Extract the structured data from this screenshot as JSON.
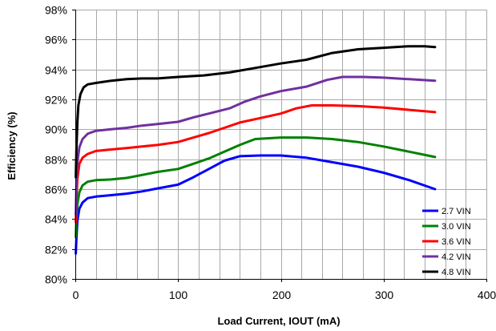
{
  "chart_data": {
    "type": "line",
    "xlabel": "Load Current, IOUT (mA)",
    "ylabel": "Efficiency (%)",
    "xlim": [
      0,
      400
    ],
    "ylim": [
      80,
      98
    ],
    "x_ticks": [
      0,
      100,
      200,
      300,
      400
    ],
    "x_tick_labels": [
      "0",
      "100",
      "200",
      "300",
      "400"
    ],
    "y_ticks": [
      80,
      82,
      84,
      86,
      88,
      90,
      92,
      94,
      96,
      98
    ],
    "y_tick_labels": [
      "80%",
      "82%",
      "84%",
      "86%",
      "88%",
      "90%",
      "92%",
      "94%",
      "96%",
      "98%"
    ],
    "x_minor_gridlines": [
      20,
      40,
      60,
      80,
      100,
      120,
      140,
      160,
      180,
      200,
      220,
      240,
      260,
      280,
      300,
      320,
      340,
      360,
      380,
      400
    ],
    "grid": true,
    "legend_position": "bottom-right",
    "series": [
      {
        "name": "2.7 VIN",
        "color": "#0000ff",
        "points": [
          [
            0.5,
            81.7
          ],
          [
            1,
            82.6
          ],
          [
            2,
            83.9
          ],
          [
            4,
            84.7
          ],
          [
            7,
            85.1
          ],
          [
            12,
            85.4
          ],
          [
            20,
            85.5
          ],
          [
            35,
            85.6
          ],
          [
            50,
            85.7
          ],
          [
            65,
            85.85
          ],
          [
            80,
            86.05
          ],
          [
            100,
            86.3
          ],
          [
            115,
            86.8
          ],
          [
            130,
            87.35
          ],
          [
            145,
            87.9
          ],
          [
            160,
            88.2
          ],
          [
            180,
            88.25
          ],
          [
            200,
            88.25
          ],
          [
            225,
            88.1
          ],
          [
            250,
            87.8
          ],
          [
            275,
            87.5
          ],
          [
            300,
            87.1
          ],
          [
            325,
            86.6
          ],
          [
            350,
            86.0
          ]
        ]
      },
      {
        "name": "3.0 VIN",
        "color": "#008000",
        "points": [
          [
            0.5,
            82.8
          ],
          [
            1,
            84.0
          ],
          [
            2,
            85.0
          ],
          [
            4,
            85.8
          ],
          [
            7,
            86.25
          ],
          [
            12,
            86.5
          ],
          [
            20,
            86.6
          ],
          [
            35,
            86.65
          ],
          [
            50,
            86.75
          ],
          [
            65,
            86.95
          ],
          [
            80,
            87.15
          ],
          [
            100,
            87.35
          ],
          [
            115,
            87.7
          ],
          [
            130,
            88.05
          ],
          [
            145,
            88.5
          ],
          [
            160,
            88.95
          ],
          [
            175,
            89.35
          ],
          [
            200,
            89.45
          ],
          [
            225,
            89.45
          ],
          [
            250,
            89.35
          ],
          [
            275,
            89.15
          ],
          [
            300,
            88.85
          ],
          [
            325,
            88.5
          ],
          [
            350,
            88.15
          ]
        ]
      },
      {
        "name": "3.6 VIN",
        "color": "#ff0000",
        "points": [
          [
            0.5,
            83.8
          ],
          [
            1,
            85.3
          ],
          [
            2,
            86.7
          ],
          [
            4,
            87.7
          ],
          [
            7,
            88.1
          ],
          [
            12,
            88.35
          ],
          [
            20,
            88.55
          ],
          [
            35,
            88.65
          ],
          [
            50,
            88.75
          ],
          [
            65,
            88.85
          ],
          [
            80,
            88.95
          ],
          [
            100,
            89.15
          ],
          [
            115,
            89.45
          ],
          [
            130,
            89.75
          ],
          [
            145,
            90.1
          ],
          [
            160,
            90.45
          ],
          [
            180,
            90.75
          ],
          [
            200,
            91.05
          ],
          [
            215,
            91.4
          ],
          [
            230,
            91.6
          ],
          [
            250,
            91.6
          ],
          [
            275,
            91.55
          ],
          [
            300,
            91.45
          ],
          [
            325,
            91.3
          ],
          [
            350,
            91.15
          ]
        ]
      },
      {
        "name": "4.2 VIN",
        "color": "#7030a0",
        "points": [
          [
            0.5,
            84.3
          ],
          [
            1,
            86.2
          ],
          [
            2,
            87.8
          ],
          [
            4,
            88.8
          ],
          [
            7,
            89.35
          ],
          [
            12,
            89.7
          ],
          [
            20,
            89.9
          ],
          [
            35,
            90.0
          ],
          [
            50,
            90.1
          ],
          [
            65,
            90.25
          ],
          [
            80,
            90.35
          ],
          [
            100,
            90.5
          ],
          [
            115,
            90.8
          ],
          [
            130,
            91.05
          ],
          [
            150,
            91.4
          ],
          [
            165,
            91.85
          ],
          [
            180,
            92.2
          ],
          [
            200,
            92.55
          ],
          [
            225,
            92.85
          ],
          [
            245,
            93.3
          ],
          [
            260,
            93.5
          ],
          [
            280,
            93.5
          ],
          [
            300,
            93.45
          ],
          [
            325,
            93.35
          ],
          [
            350,
            93.25
          ]
        ]
      },
      {
        "name": "4.8 VIN",
        "color": "#000000",
        "points": [
          [
            0.5,
            86.8
          ],
          [
            1,
            88.5
          ],
          [
            2,
            90.5
          ],
          [
            3,
            91.6
          ],
          [
            5,
            92.35
          ],
          [
            8,
            92.8
          ],
          [
            12,
            93.0
          ],
          [
            20,
            93.1
          ],
          [
            35,
            93.25
          ],
          [
            50,
            93.35
          ],
          [
            65,
            93.4
          ],
          [
            80,
            93.4
          ],
          [
            100,
            93.5
          ],
          [
            125,
            93.6
          ],
          [
            150,
            93.8
          ],
          [
            175,
            94.1
          ],
          [
            200,
            94.4
          ],
          [
            225,
            94.65
          ],
          [
            250,
            95.1
          ],
          [
            275,
            95.35
          ],
          [
            300,
            95.45
          ],
          [
            325,
            95.55
          ],
          [
            340,
            95.55
          ],
          [
            350,
            95.5
          ]
        ]
      }
    ]
  }
}
